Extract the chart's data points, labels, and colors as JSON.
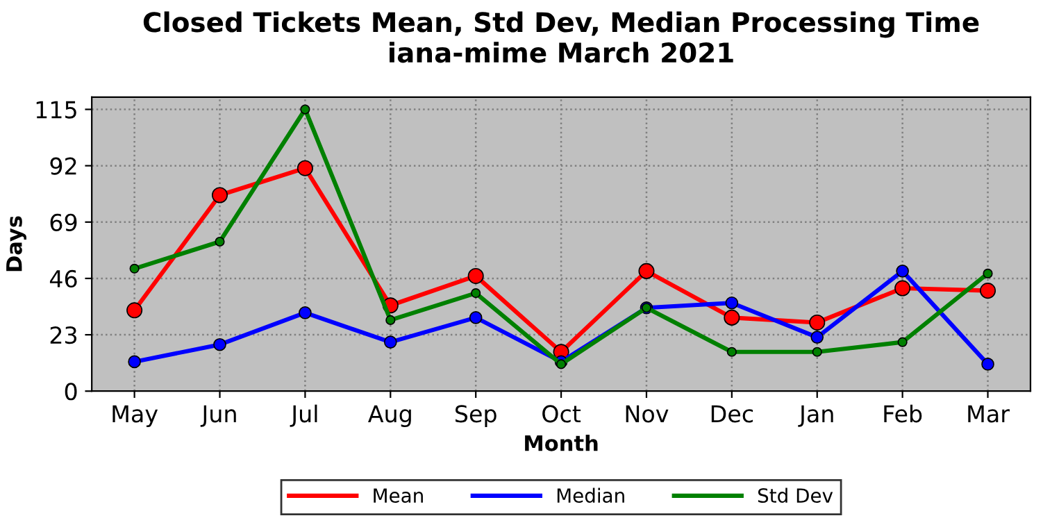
{
  "chart_data": {
    "type": "line",
    "title": "Closed Tickets Mean, Std Dev, Median Processing Time\niana-mime March 2021",
    "xlabel": "Month",
    "ylabel": "Days",
    "categories": [
      "May",
      "Jun",
      "Jul",
      "Aug",
      "Sep",
      "Oct",
      "Nov",
      "Dec",
      "Jan",
      "Feb",
      "Mar"
    ],
    "series": [
      {
        "name": "Mean",
        "color": "#ff0000",
        "values": [
          33,
          80,
          91,
          35,
          47,
          16,
          49,
          30,
          28,
          42,
          41
        ]
      },
      {
        "name": "Median",
        "color": "#0000ff",
        "values": [
          12,
          19,
          32,
          20,
          30,
          12,
          34,
          36,
          22,
          49,
          11
        ]
      },
      {
        "name": "Std Dev",
        "color": "#008000",
        "values": [
          50,
          61,
          115,
          29,
          40,
          11,
          34,
          16,
          16,
          20,
          48
        ]
      }
    ],
    "ylim": [
      0,
      120
    ],
    "yticks": [
      0,
      23,
      46,
      69,
      92,
      115
    ],
    "grid": true,
    "legend": "bottom",
    "marker": "circle",
    "line_style": "solid"
  }
}
